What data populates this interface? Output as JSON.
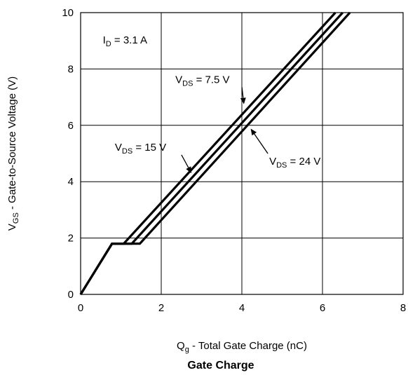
{
  "chart_data": {
    "type": "line",
    "title": "Gate Charge",
    "xlabel": {
      "main": "Q",
      "sub": "g",
      "rest": " - Total Gate Charge (nC)"
    },
    "ylabel": {
      "main": "V",
      "sub": "GS",
      "rest": " - Gate-to-Source Voltage (V)"
    },
    "xlim": [
      0,
      8
    ],
    "ylim": [
      0,
      10
    ],
    "xticks": [
      0,
      2,
      4,
      6,
      8
    ],
    "yticks": [
      0,
      2,
      4,
      6,
      8,
      10
    ],
    "grid": true,
    "series": [
      {
        "name": {
          "main": "V",
          "sub": "DS",
          "rest": " = 7.5 V"
        },
        "x": [
          0,
          0.78,
          1.07,
          6.32
        ],
        "y": [
          0,
          1.8,
          1.8,
          10
        ]
      },
      {
        "name": {
          "main": "V",
          "sub": "DS",
          "rest": " = 15 V"
        },
        "x": [
          0,
          0.78,
          1.27,
          6.5
        ],
        "y": [
          0,
          1.8,
          1.8,
          10
        ]
      },
      {
        "name": {
          "main": "V",
          "sub": "DS",
          "rest": " = 24 V"
        },
        "x": [
          0,
          0.78,
          1.47,
          6.68
        ],
        "y": [
          0,
          1.8,
          1.8,
          10
        ]
      }
    ],
    "annotations": [
      {
        "label": {
          "main": "I",
          "sub": "D",
          "rest": " = 3.1 A"
        },
        "at": [
          0.55,
          8.9
        ]
      },
      {
        "label": {
          "main": "V",
          "sub": "DS",
          "rest": " = 7.5 V"
        },
        "at": [
          2.35,
          7.5
        ],
        "arrow_to": [
          4.05,
          6.75
        ],
        "series": 0
      },
      {
        "label": {
          "main": "V",
          "sub": "DS",
          "rest": " = 15 V"
        },
        "at": [
          0.85,
          5.1
        ],
        "arrow_to": [
          2.75,
          4.3
        ],
        "series": 1
      },
      {
        "label": {
          "main": "V",
          "sub": "DS",
          "rest": " = 24 V"
        },
        "at": [
          4.68,
          4.6
        ],
        "arrow_to": [
          4.22,
          5.88
        ],
        "series": 2
      }
    ]
  }
}
